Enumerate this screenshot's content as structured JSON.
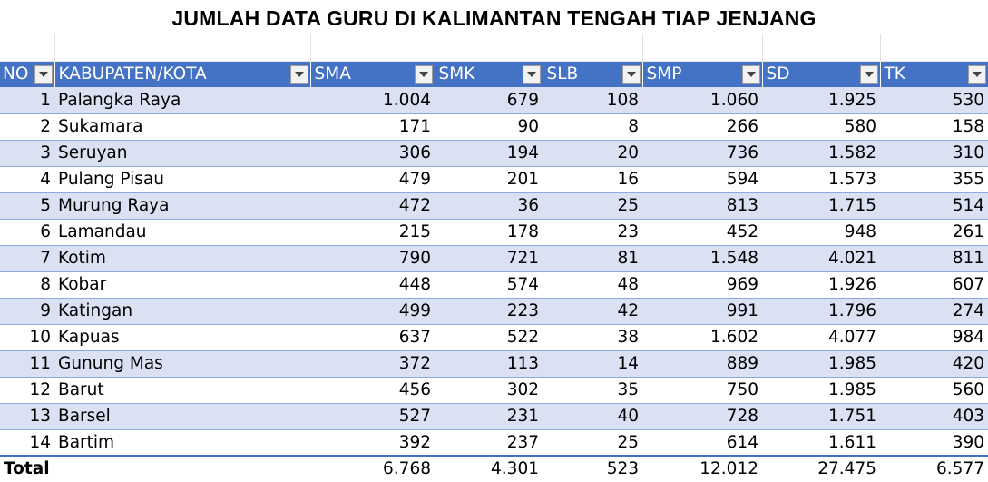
{
  "title": "JUMLAH DATA GURU DI KALIMANTAN TENGAH TIAP JENJANG",
  "headers": [
    "NO",
    "KABUPATEN/KOTA",
    "SMA",
    "SMK",
    "SLB",
    "SMP",
    "SD",
    "TK"
  ],
  "rows": [
    [
      "1",
      "Palangka Raya",
      "1.004",
      "679",
      "108",
      "1.060",
      "1.925",
      "530"
    ],
    [
      "2",
      "Sukamara",
      "171",
      "90",
      "8",
      "266",
      "580",
      "158"
    ],
    [
      "3",
      "Seruyan",
      "306",
      "194",
      "20",
      "736",
      "1.582",
      "310"
    ],
    [
      "4",
      "Pulang Pisau",
      "479",
      "201",
      "16",
      "594",
      "1.573",
      "355"
    ],
    [
      "5",
      "Murung Raya",
      "472",
      "36",
      "25",
      "813",
      "1.715",
      "514"
    ],
    [
      "6",
      "Lamandau",
      "215",
      "178",
      "23",
      "452",
      "948",
      "261"
    ],
    [
      "7",
      "Kotim",
      "790",
      "721",
      "81",
      "1.548",
      "4.021",
      "811"
    ],
    [
      "8",
      "Kobar",
      "448",
      "574",
      "48",
      "969",
      "1.926",
      "607"
    ],
    [
      "9",
      "Katingan",
      "499",
      "223",
      "42",
      "991",
      "1.796",
      "274"
    ],
    [
      "10",
      "Kapuas",
      "637",
      "522",
      "38",
      "1.602",
      "4.077",
      "984"
    ],
    [
      "11",
      "Gunung Mas",
      "372",
      "113",
      "14",
      "889",
      "1.985",
      "420"
    ],
    [
      "12",
      "Barut",
      "456",
      "302",
      "35",
      "750",
      "1.985",
      "560"
    ],
    [
      "13",
      "Barsel",
      "527",
      "231",
      "40",
      "728",
      "1.751",
      "403"
    ],
    [
      "14",
      "Bartim",
      "392",
      "237",
      "25",
      "614",
      "1.611",
      "390"
    ]
  ],
  "total": {
    "label": "Total",
    "values": [
      "6.768",
      "4.301",
      "523",
      "12.012",
      "27.475",
      "6.577"
    ]
  },
  "colors": {
    "header_bg": "#4472c4",
    "band_bg": "#d9e1f2",
    "border": "#8ea9db"
  },
  "icons": {
    "filter": "filter-dropdown-icon"
  }
}
